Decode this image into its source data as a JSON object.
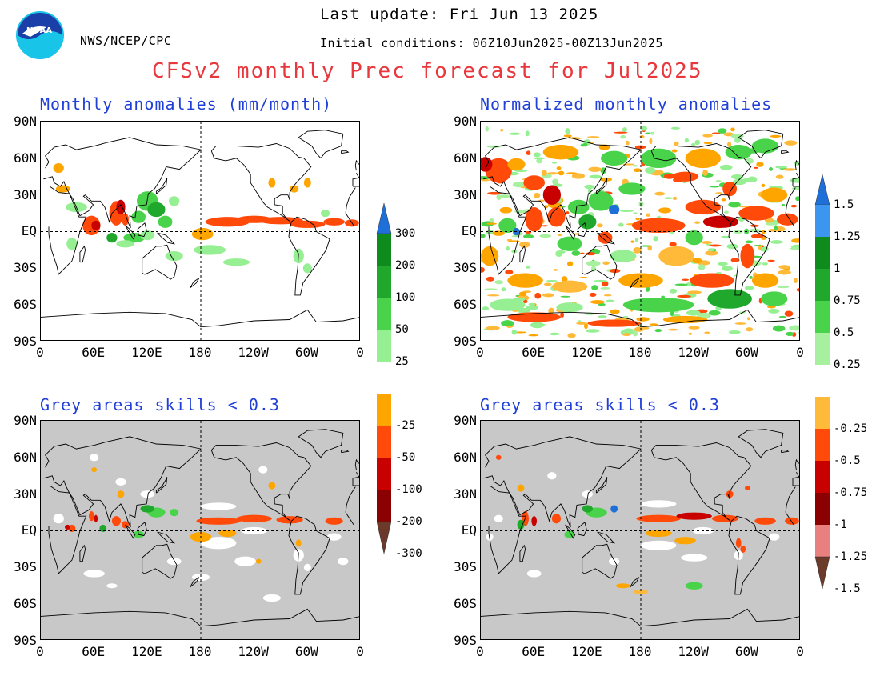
{
  "header": {
    "last_update": "Last update: Fri Jun 13 2025",
    "initial_conditions": "Initial conditions: 06Z10Jun2025-00Z13Jun2025",
    "agency": "NWS/NCEP/CPC",
    "logo_text": "NOAA",
    "title": "CFSv2 monthly Prec forecast for Jul2025"
  },
  "panels": {
    "top_left": "Monthly anomalies (mm/month)",
    "top_right": "Normalized monthly anomalies",
    "bottom_left": "Grey areas skills < 0.3",
    "bottom_right": "Grey areas skills < 0.3"
  },
  "axes": {
    "lat_labels": [
      "90N",
      "60N",
      "30N",
      "EQ",
      "30S",
      "60S",
      "90S"
    ],
    "lon_labels": [
      "0",
      "60E",
      "120E",
      "180",
      "120W",
      "60W",
      "0"
    ]
  },
  "colorbar_left": {
    "labels": [
      "300",
      "200",
      "100",
      "50",
      "25",
      "-25",
      "-50",
      "-100",
      "-200",
      "-300"
    ],
    "colors": [
      "#1e6fd8",
      "#0f8a1d",
      "#1fa82c",
      "#49d34b",
      "#97ef93",
      "#ffffff",
      "#ffa500",
      "#ff4a0a",
      "#c80000",
      "#8b0000",
      "#6b3a2a"
    ]
  },
  "colorbar_right": {
    "labels": [
      "1.5",
      "1.25",
      "1",
      "0.75",
      "0.5",
      "0.25",
      "-0.25",
      "-0.5",
      "-0.75",
      "-1",
      "-1.25",
      "-1.5"
    ],
    "colors": [
      "#1e6fd8",
      "#3c96f0",
      "#0f8a1d",
      "#1fa82c",
      "#49d34b",
      "#a6f0a0",
      "#ffffff",
      "#ffba3a",
      "#ff4a0a",
      "#c80000",
      "#8b0000",
      "#e88080",
      "#6b3a2a"
    ]
  },
  "colors": {
    "title_red": "#e8383d",
    "panel_title_blue": "#1f3fd8",
    "skill_grey": "#c8c8c8"
  }
}
